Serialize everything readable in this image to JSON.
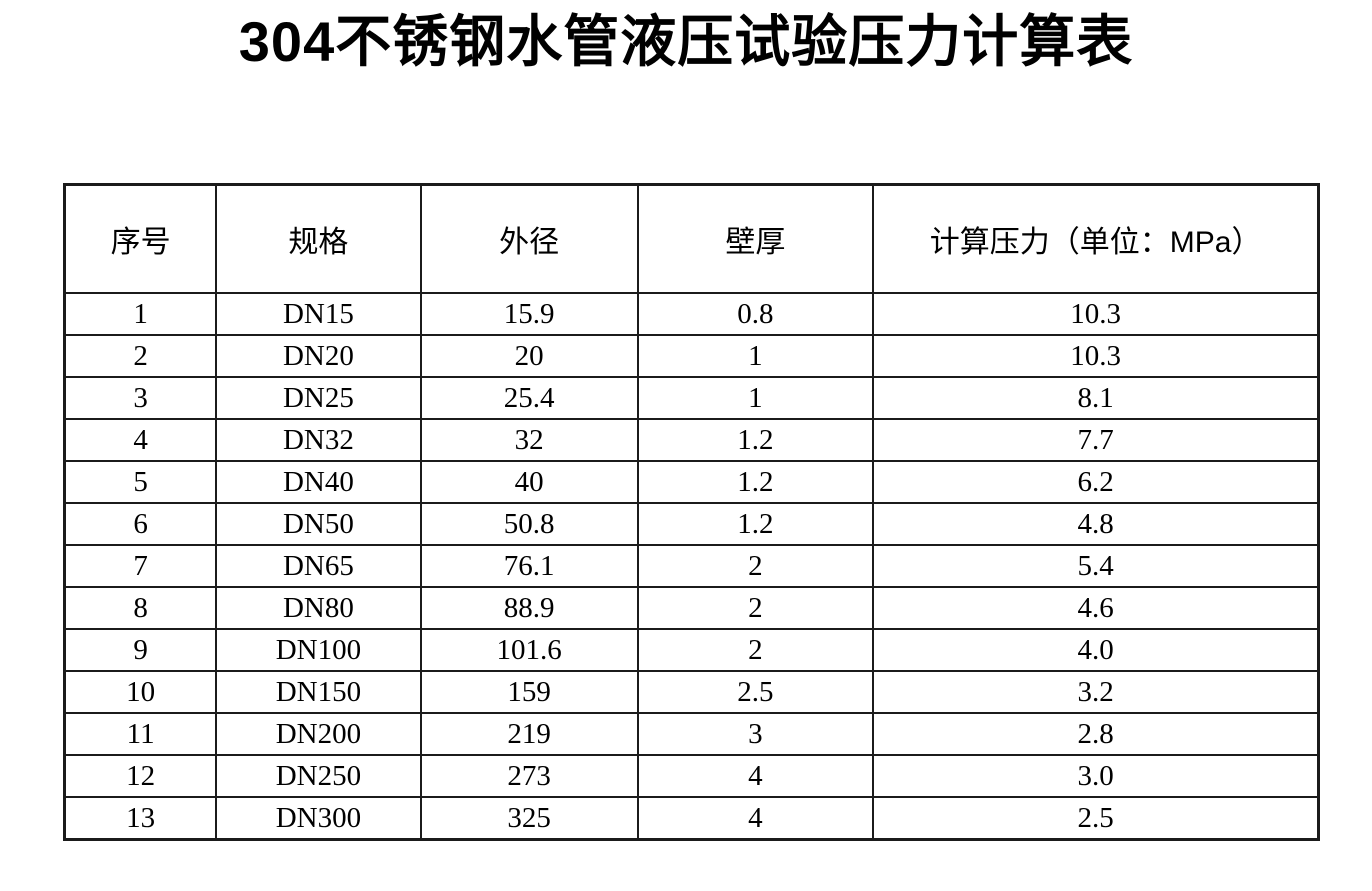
{
  "page": {
    "title": "304不锈钢水管液压试验压力计算表"
  },
  "table": {
    "headers": [
      "序号",
      "规格",
      "外径",
      "壁厚",
      "计算压力（单位：MPa）"
    ],
    "rows": [
      [
        "1",
        "DN15",
        "15.9",
        "0.8",
        "10.3"
      ],
      [
        "2",
        "DN20",
        "20",
        "1",
        "10.3"
      ],
      [
        "3",
        "DN25",
        "25.4",
        "1",
        "8.1"
      ],
      [
        "4",
        "DN32",
        "32",
        "1.2",
        "7.7"
      ],
      [
        "5",
        "DN40",
        "40",
        "1.2",
        "6.2"
      ],
      [
        "6",
        "DN50",
        "50.8",
        "1.2",
        "4.8"
      ],
      [
        "7",
        "DN65",
        "76.1",
        "2",
        "5.4"
      ],
      [
        "8",
        "DN80",
        "88.9",
        "2",
        "4.6"
      ],
      [
        "9",
        "DN100",
        "101.6",
        "2",
        "4.0"
      ],
      [
        "10",
        "DN150",
        "159",
        "2.5",
        "3.2"
      ],
      [
        "11",
        "DN200",
        "219",
        "3",
        "2.8"
      ],
      [
        "12",
        "DN250",
        "273",
        "4",
        "3.0"
      ],
      [
        "13",
        "DN300",
        "325",
        "4",
        "2.5"
      ]
    ],
    "colors": {
      "text": "#000000",
      "border": "#1b1b1b",
      "background": "#ffffff"
    }
  }
}
